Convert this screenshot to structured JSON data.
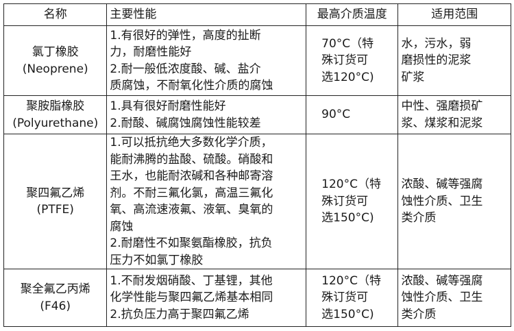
{
  "headers": [
    "名称",
    "主要性能",
    "最高介质温度",
    "适用范围"
  ],
  "rows": [
    {
      "name": [
        "氯丁橡胶",
        "(Neoprene)"
      ],
      "performance": [
        "1.有很好的弹性，高度的扯断",
        "力，耐磨性能好",
        "2.耐一般低浓度酸、碱、盐介",
        "质腐蚀，不耐氧化性介质的腐蚀"
      ],
      "temperature": [
        "70°C（特",
        "殊订货可",
        "选120°C)"
      ],
      "scope": [
        "水，污水，弱",
        "磨损性的泥浆",
        "矿浆"
      ]
    },
    {
      "name": [
        "聚胺脂橡胶",
        "(Polyurethane)"
      ],
      "performance": [
        "1.具有很好耐磨性能好",
        "2.耐酸、碱腐蚀腐蚀性能较差"
      ],
      "temperature": [
        "90°C"
      ],
      "scope": [
        "中性、强磨损矿",
        "浆、煤浆和泥浆"
      ]
    },
    {
      "name": [
        "聚四氟乙烯",
        "(PTFE)"
      ],
      "performance": [
        "1.可以抵抗绝大多数化学介质，",
        "能耐沸腾的盐酸、硫酸。硝酸和",
        "王水，也能耐浓碱和各种邮寄溶",
        "剂。不耐三氟化氯，高温三氟化",
        "氧、高流速液氟、液氧、臭氧的",
        "腐蚀",
        "2.耐磨性不如聚氨酯橡胶，抗负",
        "压力不如氯丁橡胶"
      ],
      "temperature": [
        "120°C（特",
        "殊订货可",
        "选150°C)"
      ],
      "scope": [
        "浓酸、碱等强腐",
        "蚀性介质、卫生",
        "类介质"
      ]
    },
    {
      "name": [
        "聚全氟乙丙烯",
        "(F46)"
      ],
      "performance": [
        "1.不耐发烟硝酸、丁基锂，其他",
        "化学性能与聚四氟乙烯基本相同",
        "2.抗负压力高于聚四氟乙烯"
      ],
      "temperature": [
        "120°C（特",
        "殊订货可",
        "选150°C)"
      ],
      "scope": [
        "浓酸、碱等强腐",
        "蚀性介质、卫生",
        "类介质"
      ]
    }
  ]
}
